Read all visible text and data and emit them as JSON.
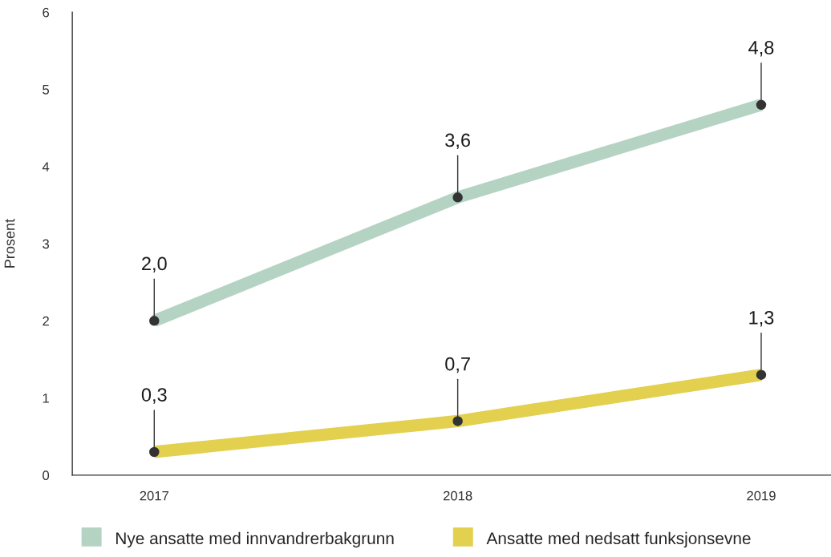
{
  "chart_data": {
    "type": "line",
    "ylabel": "Prosent",
    "categories": [
      "2017",
      "2018",
      "2019"
    ],
    "series": [
      {
        "name": "Nye ansatte med innvandrerbakgrunn",
        "color": "#b5d3c2",
        "values": [
          2.0,
          3.6,
          4.8
        ],
        "value_labels": [
          "2,0",
          "3,6",
          "4,8"
        ]
      },
      {
        "name": "Ansatte med nedsatt funksjonsevne",
        "color": "#e3d04f",
        "values": [
          0.3,
          0.7,
          1.3
        ],
        "value_labels": [
          "0,3",
          "0,7",
          "1,3"
        ]
      }
    ],
    "ylim": [
      0,
      6
    ],
    "yticks": [
      0,
      1,
      2,
      3,
      4,
      5,
      6
    ],
    "grid": false,
    "legend": "bottom",
    "marker": "circle",
    "line_style": "solid"
  }
}
